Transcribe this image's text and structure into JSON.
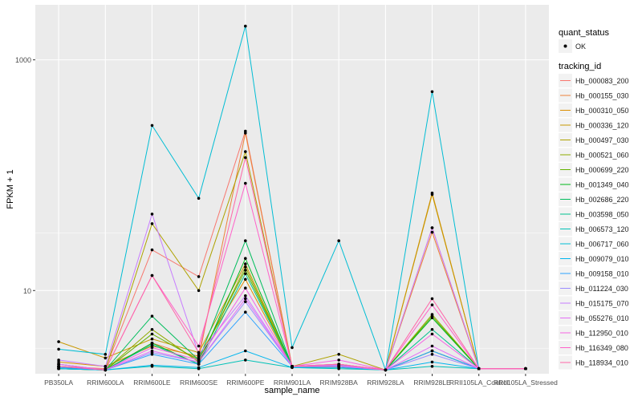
{
  "chart_data": {
    "type": "line",
    "xlabel": "sample_name",
    "ylabel": "FPKM + 1",
    "y_scale": "log10",
    "ylim": [
      1.9,
      3000
    ],
    "y_ticks": [
      {
        "value": 10,
        "label": "10"
      },
      {
        "value": 1000,
        "label": "1000"
      }
    ],
    "grid": true,
    "panel_background": "#ebebeb",
    "grid_color": "#ffffff",
    "point_color": "#000000",
    "categories": [
      "PB350LA",
      "RRIM600LA",
      "RRIM600LE",
      "RRIM600SE",
      "RRIM600PE",
      "RRIM901LA",
      "RRIM928BA",
      "RRIM928LA",
      "RRIM928LE",
      "RRII105LA_Control",
      "RRII105LA_Stressed"
    ],
    "series": [
      {
        "name": "Hb_000083_200",
        "color": "#f8766d",
        "values": [
          2.2,
          2.1,
          22.5,
          13.2,
          241,
          2.2,
          2.2,
          2.05,
          35.0,
          2.1,
          2.1
        ]
      },
      {
        "name": "Hb_000155_030",
        "color": "#ec8239",
        "values": [
          2.3,
          2.05,
          3.5,
          2.6,
          232,
          2.2,
          2.15,
          2.05,
          32.0,
          2.1,
          2.1
        ]
      },
      {
        "name": "Hb_000310_050",
        "color": "#db8e00",
        "values": [
          2.4,
          2.2,
          3.3,
          2.7,
          12.5,
          2.2,
          2.2,
          2.05,
          70.0,
          2.1,
          2.1
        ]
      },
      {
        "name": "Hb_000336_120",
        "color": "#c79800",
        "values": [
          3.6,
          2.6,
          3.8,
          2.9,
          17.0,
          2.2,
          2.25,
          2.05,
          68.0,
          2.1,
          2.1
        ]
      },
      {
        "name": "Hb_000497_030",
        "color": "#aea200",
        "values": [
          2.2,
          2.05,
          38.0,
          10.0,
          160,
          2.2,
          2.8,
          2.05,
          3.0,
          2.1,
          2.1
        ]
      },
      {
        "name": "Hb_000521_060",
        "color": "#8fab00",
        "values": [
          2.1,
          2.05,
          4.6,
          2.4,
          16.0,
          2.2,
          2.25,
          2.05,
          6.2,
          2.1,
          2.1
        ]
      },
      {
        "name": "Hb_000699_220",
        "color": "#64b200",
        "values": [
          2.2,
          2.05,
          4.2,
          2.5,
          15.0,
          2.2,
          2.3,
          2.05,
          6.0,
          2.1,
          2.1
        ]
      },
      {
        "name": "Hb_001349_040",
        "color": "#00b81b",
        "values": [
          2.1,
          2.05,
          3.5,
          2.3,
          19.0,
          2.2,
          2.2,
          2.05,
          5.8,
          2.1,
          2.1
        ]
      },
      {
        "name": "Hb_002686_220",
        "color": "#00bd5c",
        "values": [
          2.15,
          2.05,
          6.0,
          2.5,
          27.0,
          2.2,
          2.25,
          2.05,
          3.0,
          2.1,
          2.1
        ]
      },
      {
        "name": "Hb_003598_050",
        "color": "#00c08e",
        "values": [
          2.1,
          2.05,
          3.4,
          2.3,
          14.0,
          2.2,
          2.2,
          2.05,
          4.6,
          2.1,
          2.1
        ]
      },
      {
        "name": "Hb_006573_120",
        "color": "#00c1b7",
        "values": [
          2.2,
          2.05,
          2.2,
          2.1,
          2.5,
          2.15,
          2.1,
          2.05,
          2.2,
          2.1,
          2.1
        ]
      },
      {
        "name": "Hb_006717_060",
        "color": "#00bdd4",
        "values": [
          3.1,
          2.8,
          270,
          63,
          1960,
          3.2,
          27,
          2.05,
          530,
          2.1,
          2.1
        ]
      },
      {
        "name": "Hb_009079_010",
        "color": "#00b5ee",
        "values": [
          2.1,
          2.05,
          2.25,
          2.15,
          3.0,
          2.15,
          2.15,
          2.05,
          2.4,
          2.1,
          2.1
        ]
      },
      {
        "name": "Hb_009158_010",
        "color": "#2ca1ff",
        "values": [
          2.15,
          2.05,
          2.8,
          2.3,
          6.5,
          2.2,
          2.2,
          2.05,
          3.0,
          2.1,
          2.1
        ]
      },
      {
        "name": "Hb_011224_030",
        "color": "#9c8dff",
        "values": [
          2.3,
          2.05,
          2.9,
          2.4,
          8.0,
          2.2,
          2.2,
          2.05,
          2.8,
          2.1,
          2.1
        ]
      },
      {
        "name": "Hb_015175_070",
        "color": "#c77cff",
        "values": [
          2.5,
          2.2,
          46,
          2.8,
          9.0,
          2.2,
          2.25,
          2.05,
          35.0,
          2.1,
          2.1
        ]
      },
      {
        "name": "Hb_055276_010",
        "color": "#e36ef6",
        "values": [
          2.3,
          2.05,
          3.0,
          2.4,
          8.5,
          2.2,
          2.2,
          2.05,
          3.3,
          2.1,
          2.1
        ]
      },
      {
        "name": "Hb_112950_010",
        "color": "#f564e3",
        "values": [
          2.2,
          2.05,
          3.2,
          2.5,
          10.5,
          2.2,
          2.5,
          2.05,
          4.2,
          2.1,
          2.1
        ]
      },
      {
        "name": "Hb_116349_080",
        "color": "#ff61c9",
        "values": [
          2.2,
          2.05,
          13.5,
          3.3,
          85,
          2.2,
          2.3,
          2.05,
          7.5,
          2.1,
          2.1
        ]
      },
      {
        "name": "Hb_118934_010",
        "color": "#ff66a8",
        "values": [
          2.2,
          2.05,
          13.5,
          2.9,
          142,
          2.2,
          2.3,
          2.05,
          8.5,
          2.1,
          2.1
        ]
      }
    ],
    "legend": {
      "placement": "right",
      "quant_title": "quant_status",
      "quant_label": "OK",
      "series_title": "tracking_id"
    }
  }
}
